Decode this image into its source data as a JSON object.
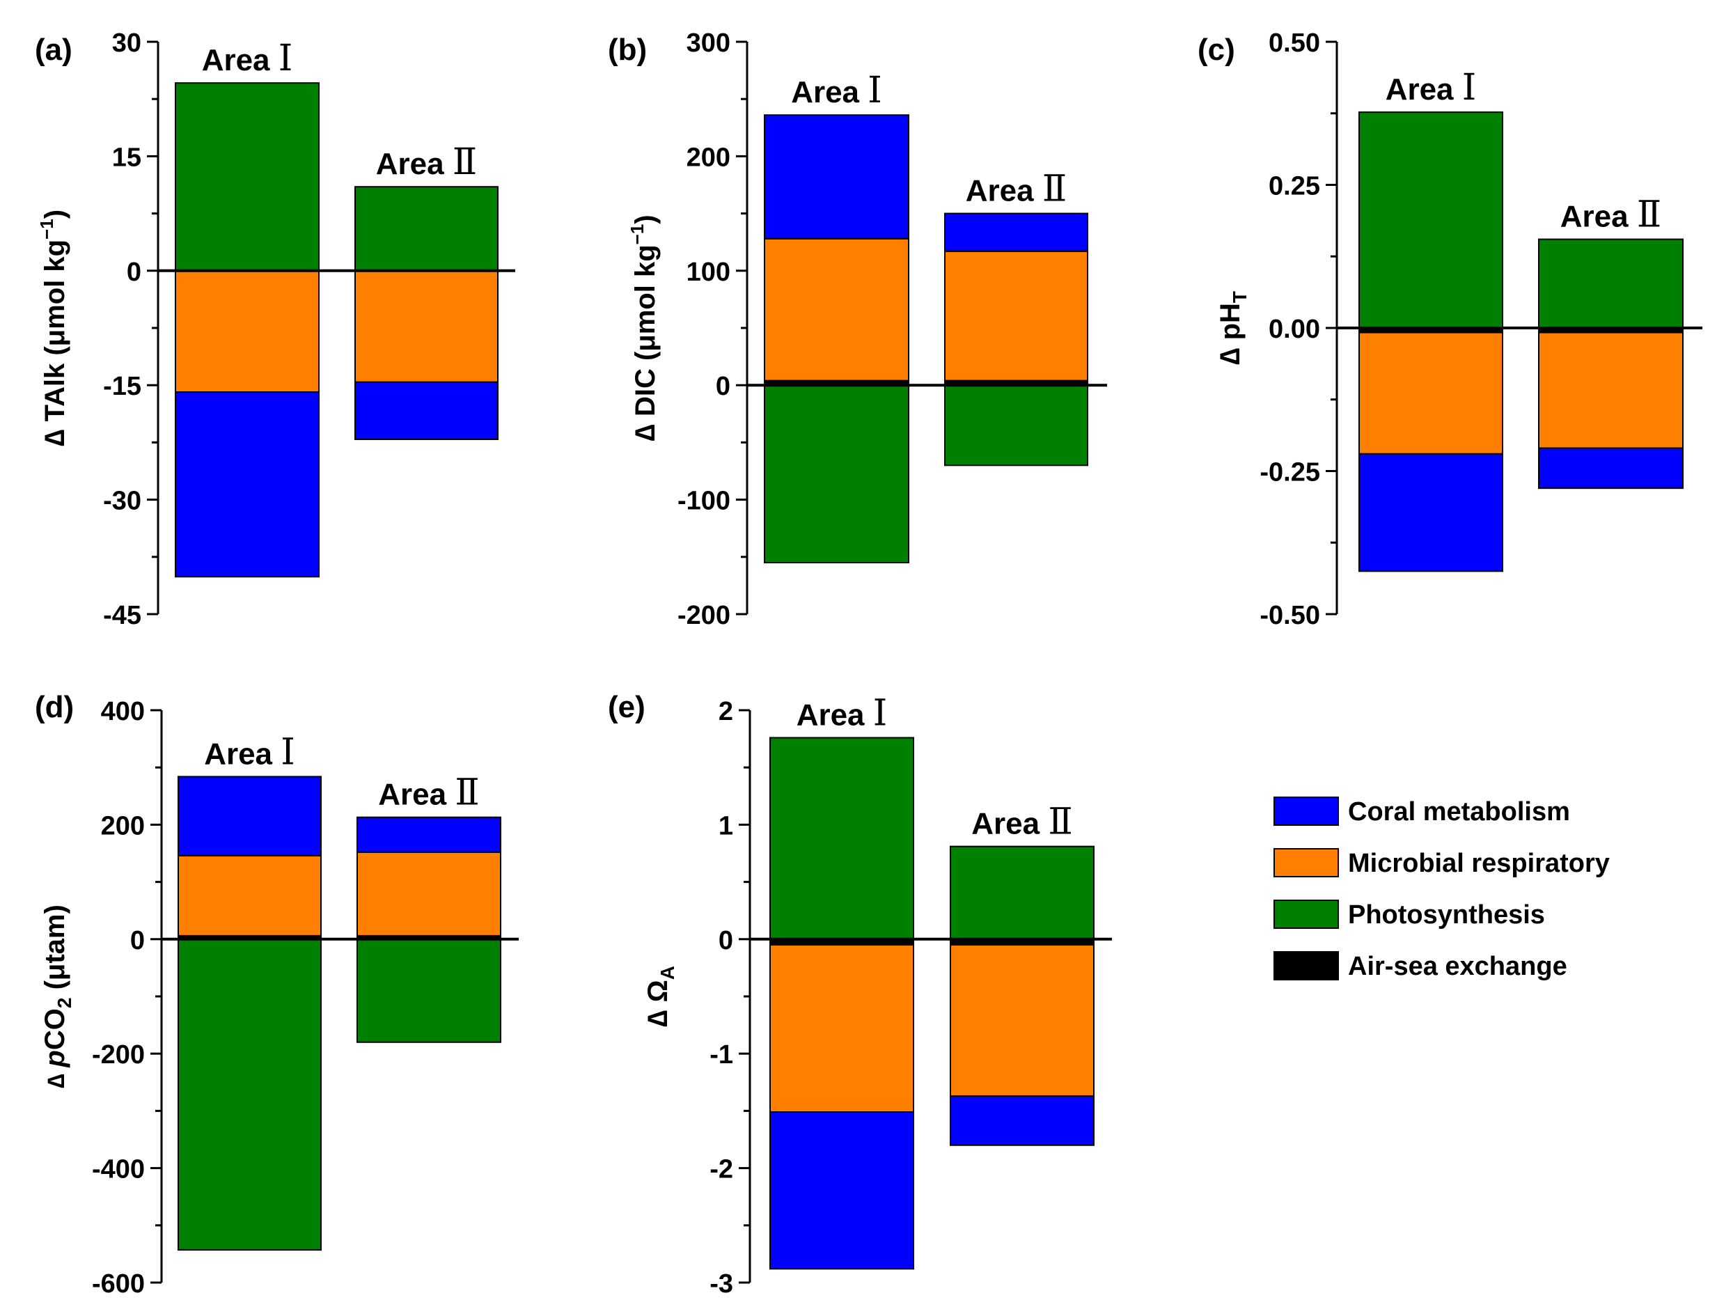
{
  "legend": {
    "entries": [
      {
        "name": "Coral metabolism",
        "color": "#0000ff"
      },
      {
        "name": "Microbial respiratory",
        "color": "#ff8000"
      },
      {
        "name": "Photosynthesis",
        "color": "#008000"
      },
      {
        "name": "Air-sea exchange",
        "color": "#000000"
      }
    ]
  },
  "chart_data": [
    {
      "type": "bar",
      "panel_label": "(a)",
      "ylabel_parts": [
        "∆ TAlk (μmol kg",
        "−1",
        ")"
      ],
      "ylim": [
        -45,
        30
      ],
      "yticks": [
        "-45",
        "-30",
        "-15",
        "0",
        "15",
        "30"
      ],
      "ytick_values": [
        -45,
        -30,
        -15,
        0,
        15,
        30
      ],
      "area_labels": [
        [
          "Area",
          "Ⅰ"
        ],
        [
          "Area",
          "Ⅱ"
        ]
      ],
      "bars": [
        [
          {
            "component": "Photosynthesis",
            "from": 0,
            "to": 24.6
          },
          {
            "component": "Microbial respiratory",
            "from": 0,
            "to": -15.9
          },
          {
            "component": "Coral metabolism",
            "from": -15.9,
            "to": -40.1
          }
        ],
        [
          {
            "component": "Photosynthesis",
            "from": 0,
            "to": 11.0
          },
          {
            "component": "Microbial respiratory",
            "from": 0,
            "to": -14.6
          },
          {
            "component": "Coral metabolism",
            "from": -14.6,
            "to": -22.1
          }
        ]
      ]
    },
    {
      "type": "bar",
      "panel_label": "(b)",
      "ylabel_parts": [
        "∆ DIC (μmol kg",
        "−1",
        ")"
      ],
      "ylim": [
        -200,
        300
      ],
      "yticks": [
        "-200",
        "-100",
        "0",
        "100",
        "200",
        "300"
      ],
      "ytick_values": [
        -200,
        -100,
        0,
        100,
        200,
        300
      ],
      "area_labels": [
        [
          "Area",
          "Ⅰ"
        ],
        [
          "Area",
          "Ⅱ"
        ]
      ],
      "bars": [
        [
          {
            "component": "Air-sea exchange",
            "from": 0,
            "to": 4
          },
          {
            "component": "Microbial respiratory",
            "from": 4,
            "to": 128
          },
          {
            "component": "Coral metabolism",
            "from": 128,
            "to": 236
          },
          {
            "component": "Photosynthesis",
            "from": 0,
            "to": -155
          }
        ],
        [
          {
            "component": "Air-sea exchange",
            "from": 0,
            "to": 4
          },
          {
            "component": "Microbial respiratory",
            "from": 4,
            "to": 117
          },
          {
            "component": "Coral metabolism",
            "from": 117,
            "to": 150
          },
          {
            "component": "Photosynthesis",
            "from": 0,
            "to": -70
          }
        ]
      ]
    },
    {
      "type": "bar",
      "panel_label": "(c)",
      "ylabel_parts": [
        "∆ pH",
        "T",
        ""
      ],
      "ylabel_sub": true,
      "ylim": [
        -0.5,
        0.5
      ],
      "yticks": [
        "-0.50",
        "-0.25",
        "0.00",
        "0.25",
        "0.50"
      ],
      "ytick_values": [
        -0.5,
        -0.25,
        0,
        0.25,
        0.5
      ],
      "area_labels": [
        [
          "Area",
          "Ⅰ"
        ],
        [
          "Area",
          "Ⅱ"
        ]
      ],
      "bars": [
        [
          {
            "component": "Photosynthesis",
            "from": 0,
            "to": 0.377
          },
          {
            "component": "Air-sea exchange",
            "from": 0,
            "to": -0.008
          },
          {
            "component": "Microbial respiratory",
            "from": -0.008,
            "to": -0.22
          },
          {
            "component": "Coral metabolism",
            "from": -0.22,
            "to": -0.425
          }
        ],
        [
          {
            "component": "Photosynthesis",
            "from": 0,
            "to": 0.155
          },
          {
            "component": "Air-sea exchange",
            "from": 0,
            "to": -0.008
          },
          {
            "component": "Microbial respiratory",
            "from": -0.008,
            "to": -0.21
          },
          {
            "component": "Coral metabolism",
            "from": -0.21,
            "to": -0.28
          }
        ]
      ]
    },
    {
      "type": "bar",
      "panel_label": "(d)",
      "ylabel_parts": [
        "∆ ",
        "p",
        "CO",
        "2",
        " (μtam)"
      ],
      "ylabel_pco2": true,
      "ylim": [
        -600,
        400
      ],
      "yticks": [
        "-600",
        "-400",
        "-200",
        "0",
        "200",
        "400"
      ],
      "ytick_values": [
        -600,
        -400,
        -200,
        0,
        200,
        400
      ],
      "area_labels": [
        [
          "Area",
          "Ⅰ"
        ],
        [
          "Area",
          "Ⅱ"
        ]
      ],
      "bars": [
        [
          {
            "component": "Air-sea exchange",
            "from": 0,
            "to": 6
          },
          {
            "component": "Microbial respiratory",
            "from": 6,
            "to": 146
          },
          {
            "component": "Coral metabolism",
            "from": 146,
            "to": 284
          },
          {
            "component": "Photosynthesis",
            "from": 0,
            "to": -543
          }
        ],
        [
          {
            "component": "Air-sea exchange",
            "from": 0,
            "to": 6
          },
          {
            "component": "Microbial respiratory",
            "from": 6,
            "to": 152
          },
          {
            "component": "Coral metabolism",
            "from": 152,
            "to": 213
          },
          {
            "component": "Photosynthesis",
            "from": 0,
            "to": -180
          }
        ]
      ]
    },
    {
      "type": "bar",
      "panel_label": "(e)",
      "ylabel_parts": [
        "∆ Ω",
        "A",
        ""
      ],
      "ylabel_sub": true,
      "ylim": [
        -3,
        2
      ],
      "yticks": [
        "-3",
        "-2",
        "-1",
        "0",
        "1",
        "2"
      ],
      "ytick_values": [
        -3,
        -2,
        -1,
        0,
        1,
        2
      ],
      "area_labels": [
        [
          "Area",
          "Ⅰ"
        ],
        [
          "Area",
          "Ⅱ"
        ]
      ],
      "bars": [
        [
          {
            "component": "Photosynthesis",
            "from": 0,
            "to": 1.76
          },
          {
            "component": "Air-sea exchange",
            "from": 0,
            "to": -0.05
          },
          {
            "component": "Microbial respiratory",
            "from": -0.05,
            "to": -1.51
          },
          {
            "component": "Coral metabolism",
            "from": -1.51,
            "to": -2.88
          }
        ],
        [
          {
            "component": "Photosynthesis",
            "from": 0,
            "to": 0.81
          },
          {
            "component": "Air-sea exchange",
            "from": 0,
            "to": -0.05
          },
          {
            "component": "Microbial respiratory",
            "from": -0.05,
            "to": -1.37
          },
          {
            "component": "Coral metabolism",
            "from": -1.37,
            "to": -1.8
          }
        ]
      ]
    }
  ]
}
